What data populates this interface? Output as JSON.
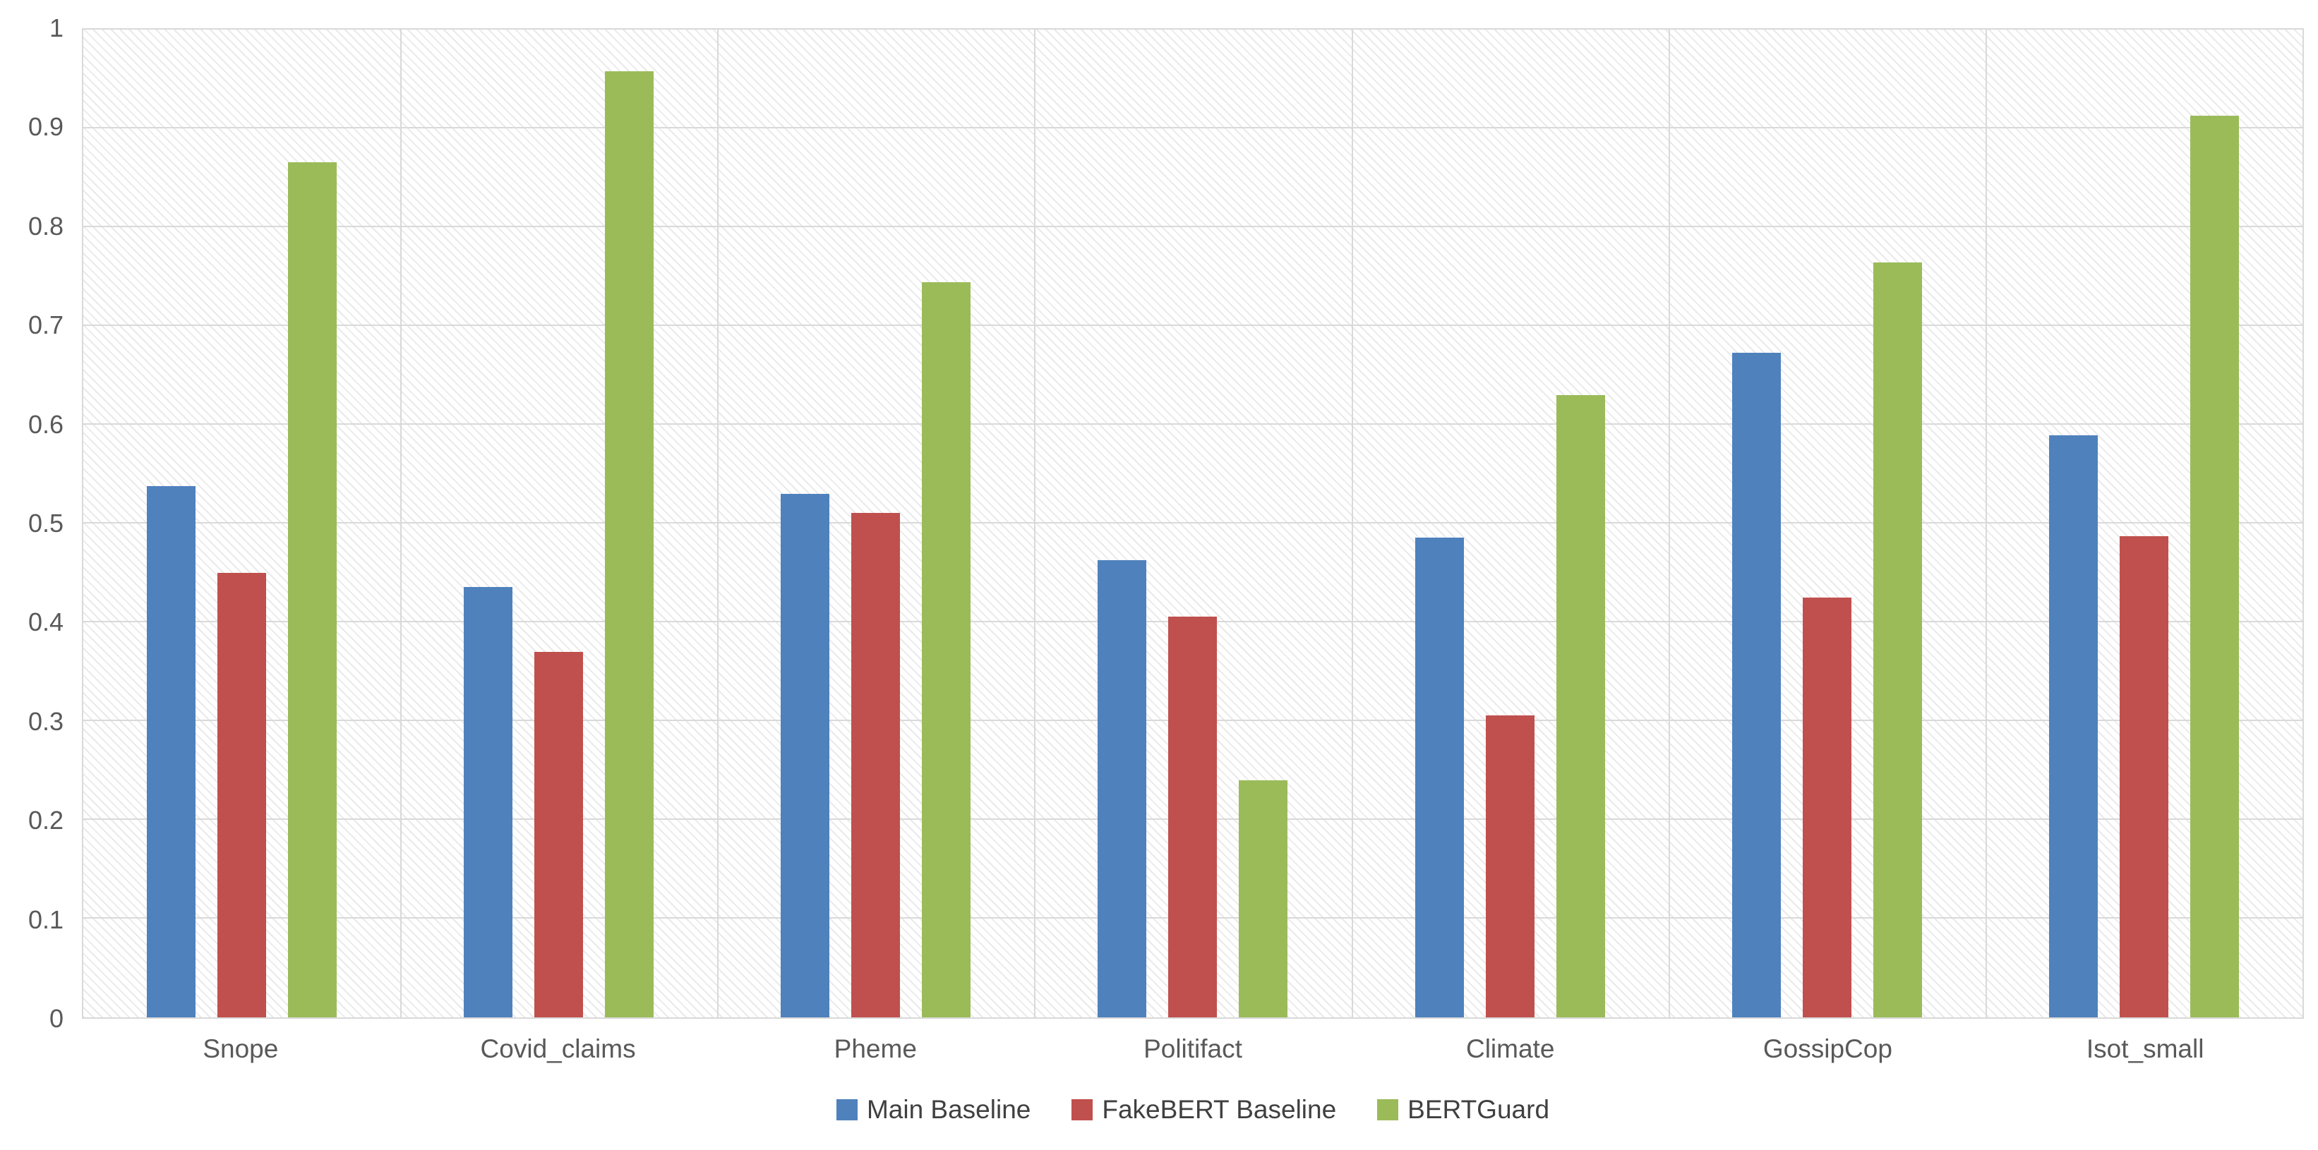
{
  "chart_data": {
    "type": "bar",
    "title": "",
    "xlabel": "",
    "ylabel": "",
    "categories": [
      "Snope",
      "Covid_claims",
      "Pheme",
      "Politifact",
      "Climate",
      "GossipCop",
      "Isot_small"
    ],
    "series": [
      {
        "name": "Main Baseline",
        "color": "#4F81BD",
        "values": [
          0.538,
          0.436,
          0.53,
          0.463,
          0.486,
          0.673,
          0.589
        ]
      },
      {
        "name": "FakeBERT Baseline",
        "color": "#C0504D",
        "values": [
          0.45,
          0.37,
          0.511,
          0.406,
          0.306,
          0.425,
          0.487
        ]
      },
      {
        "name": "BERTGuard",
        "color": "#9BBB59",
        "values": [
          0.866,
          0.958,
          0.744,
          0.24,
          0.63,
          0.764,
          0.913
        ]
      }
    ],
    "ylim": [
      0,
      1
    ],
    "y_tick_step": 0.1,
    "y_tick_labels": [
      "0",
      "0.1",
      "0.2",
      "0.3",
      "0.4",
      "0.5",
      "0.6",
      "0.7",
      "0.8",
      "0.9",
      "1"
    ],
    "grid": "horizontal gridlines every 0.1 plus vertical category-boundary gridlines",
    "legend_position": "bottom-center",
    "plot_background": "light diagonal hatch pattern"
  },
  "style": {
    "grid_color": "#d9d9d9",
    "tick_text_color": "#595959",
    "legend_text_color": "#404040",
    "hatch_color": "#eaeaea",
    "background_color": "#ffffff"
  }
}
